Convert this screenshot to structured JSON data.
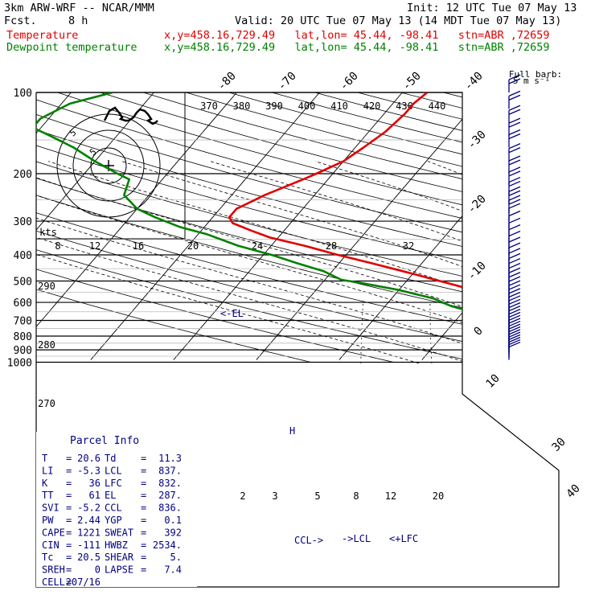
{
  "header": {
    "model": "3km ARW-WRF -- NCAR/MMM",
    "init": "Init: 12 UTC Tue 07 May 13",
    "fcst_label": "Fcst.",
    "fcst_value": "8 h",
    "valid": "Valid: 20 UTC Tue 07 May 13 (14 MDT Tue 07 May 13)"
  },
  "legend": [
    {
      "name": "Temperature",
      "info": "x,y=458.16,729.49   lat,lon= 45.44, -98.41   stn=ABR ,72659",
      "color": "#e00000"
    },
    {
      "name": "Dewpoint temperature",
      "info": "x,y=458.16,729.49   lat,lon= 45.44, -98.41   stn=ABR ,72659",
      "color": "#008000"
    }
  ],
  "colors": {
    "temperature": "#e00000",
    "dewpoint": "#008000",
    "info": "#000080",
    "grid": "#000000"
  },
  "full_barb_label": [
    "Full barb:",
    "5 m s⁻¹"
  ],
  "hodograph_label": "kts",
  "parcel_info": {
    "title": "Parcel Info",
    "rows": [
      [
        "T",
        "20.6",
        "Td",
        "11.3"
      ],
      [
        "LI",
        "-5.3",
        "LCL",
        "837."
      ],
      [
        "K",
        "36",
        "LFC",
        "832."
      ],
      [
        "TT",
        "61",
        "EL",
        "287."
      ],
      [
        "SVI",
        "-5.2",
        "CCL",
        "836."
      ],
      [
        "PW",
        "2.44",
        "YGP",
        "0.1"
      ],
      [
        "CAPE",
        "1221",
        "SWEAT",
        "392"
      ],
      [
        "CIN",
        "-111",
        "HWBZ",
        "2534."
      ],
      [
        "Tc",
        "20.5",
        "SHEAR",
        "5."
      ],
      [
        "SREH",
        "0",
        "LAPSE",
        "7.4"
      ],
      [
        "CELL",
        "207/16",
        "",
        ""
      ]
    ]
  },
  "level_markers": {
    "el": "<-EL",
    "ccl": "CCL->",
    "lcl": "->LCL",
    "lfc": "<+LFC"
  },
  "chart_data": {
    "type": "line",
    "diagram": "skew-T log-p",
    "ylabel": "",
    "pressure_ticks": [
      100,
      200,
      300,
      400,
      500,
      600,
      700,
      800,
      900,
      1000
    ],
    "isotherm_labels_top": [
      -80,
      -70,
      -60,
      -50,
      -40
    ],
    "isotherm_labels_right": [
      -30,
      -20,
      -10,
      0,
      10,
      30,
      40
    ],
    "dry_adiabat_labels": [
      370,
      380,
      390,
      400,
      410,
      420,
      430,
      440
    ],
    "moist_adiabat_labels": [
      8,
      12,
      16,
      20,
      24,
      28,
      32
    ],
    "dry_adiabat_labels_left": [
      290,
      280,
      270
    ],
    "mixing_ratio_labels": [
      2,
      3,
      5,
      8,
      12,
      20
    ],
    "hodograph_ring_labels": [
      5,
      5
    ],
    "series": [
      {
        "name": "Temperature",
        "color": "#e00000",
        "points": [
          [
            963,
            27
          ],
          [
            905,
            21
          ],
          [
            855,
            16
          ],
          [
            835,
            15.5
          ],
          [
            795,
            13
          ],
          [
            760,
            10
          ],
          [
            700,
            5.5
          ],
          [
            640,
            0
          ],
          [
            580,
            -6
          ],
          [
            540,
            -11
          ],
          [
            500,
            -16
          ],
          [
            470,
            -20
          ],
          [
            430,
            -26
          ],
          [
            400,
            -31
          ],
          [
            370,
            -36
          ],
          [
            345,
            -41
          ],
          [
            325,
            -44
          ],
          [
            305,
            -47
          ],
          [
            290,
            -48
          ],
          [
            270,
            -48
          ],
          [
            240,
            -46
          ],
          [
            210,
            -43
          ],
          [
            200,
            -42
          ],
          [
            180,
            -40
          ],
          [
            160,
            -39
          ],
          [
            140,
            -38
          ],
          [
            120,
            -37.5
          ],
          [
            110,
            -37.5
          ],
          [
            100,
            -37
          ]
        ]
      },
      {
        "name": "Dewpoint temperature",
        "color": "#008000",
        "points": [
          [
            963,
            11
          ],
          [
            905,
            12
          ],
          [
            855,
            13
          ],
          [
            835,
            12.5
          ],
          [
            810,
            10
          ],
          [
            790,
            4
          ],
          [
            780,
            0
          ],
          [
            760,
            -2
          ],
          [
            700,
            -6
          ],
          [
            650,
            -9
          ],
          [
            620,
            -12
          ],
          [
            580,
            -15
          ],
          [
            540,
            -20
          ],
          [
            510,
            -25
          ],
          [
            495,
            -28
          ],
          [
            460,
            -31
          ],
          [
            430,
            -35
          ],
          [
            400,
            -39
          ],
          [
            370,
            -44
          ],
          [
            335,
            -49
          ],
          [
            315,
            -53
          ],
          [
            290,
            -57
          ],
          [
            270,
            -60
          ],
          [
            240,
            -63
          ],
          [
            210,
            -64
          ],
          [
            200,
            -66
          ],
          [
            180,
            -70
          ],
          [
            160,
            -74
          ],
          [
            145,
            -78
          ],
          [
            135,
            -81
          ],
          [
            125,
            -81
          ],
          [
            110,
            -79
          ],
          [
            100,
            -75
          ]
        ]
      }
    ],
    "wind_barbs_hpa": [
      100,
      115,
      130,
      145,
      160,
      180,
      200,
      220,
      240,
      260,
      280,
      300,
      320,
      340,
      360,
      380,
      400,
      420,
      440,
      460,
      480,
      500,
      520,
      540,
      560,
      580,
      600,
      620,
      640,
      660,
      680,
      700,
      720,
      740,
      760,
      780,
      800,
      820,
      840,
      860,
      880,
      900,
      920,
      940,
      960,
      980
    ]
  }
}
